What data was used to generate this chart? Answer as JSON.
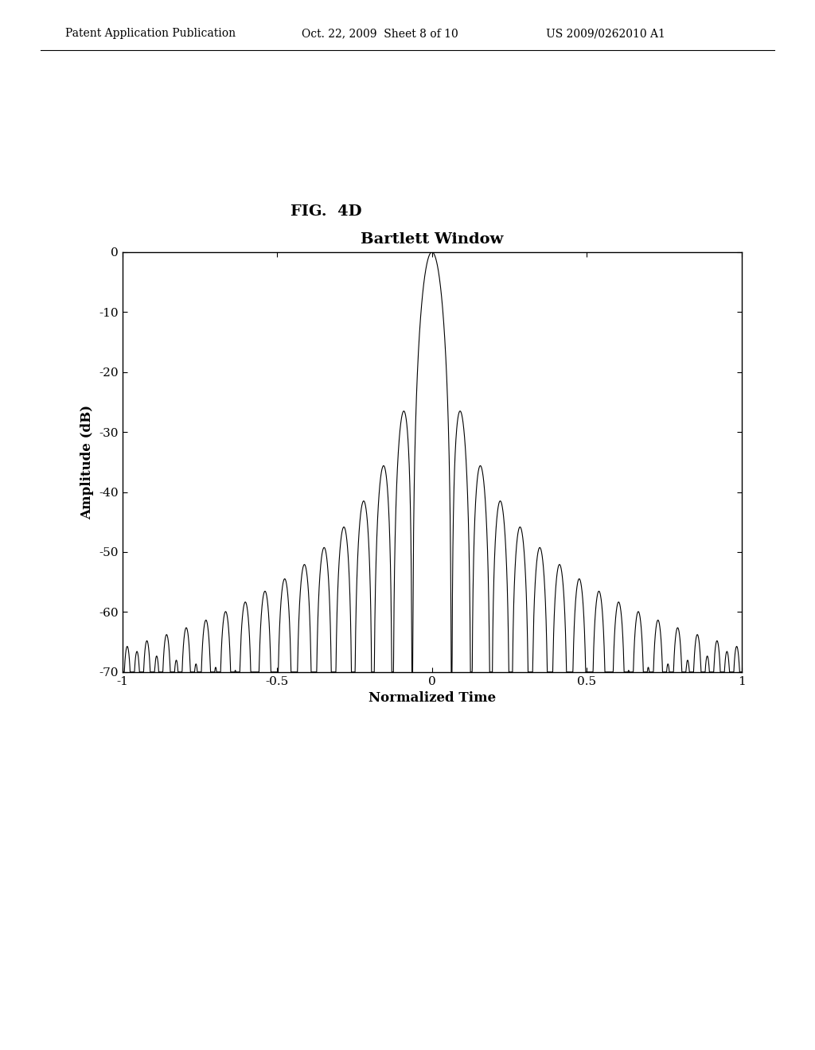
{
  "title": "Bartlett Window",
  "xlabel": "Normalized Time",
  "ylabel": "Amplitude (dB)",
  "xlim": [
    -1,
    1
  ],
  "ylim": [
    -70,
    0
  ],
  "yticks": [
    0,
    -10,
    -20,
    -30,
    -40,
    -50,
    -60,
    -70
  ],
  "xticks": [
    -1,
    -0.5,
    0,
    0.5,
    1
  ],
  "line_color": "#000000",
  "background_color": "#ffffff",
  "plot_bg_color": "#ffffff",
  "header_left": "Patent Application Publication",
  "header_mid": "Oct. 22, 2009  Sheet 8 of 10",
  "header_right": "US 2009/0262010 A1",
  "fig_label": "FIG.  4D",
  "N_window": 64,
  "N_fft": 512,
  "title_fontsize": 14,
  "axis_label_fontsize": 12,
  "tick_fontsize": 11,
  "header_fontsize": 10,
  "fig_label_fontsize": 14,
  "line_width": 0.8
}
